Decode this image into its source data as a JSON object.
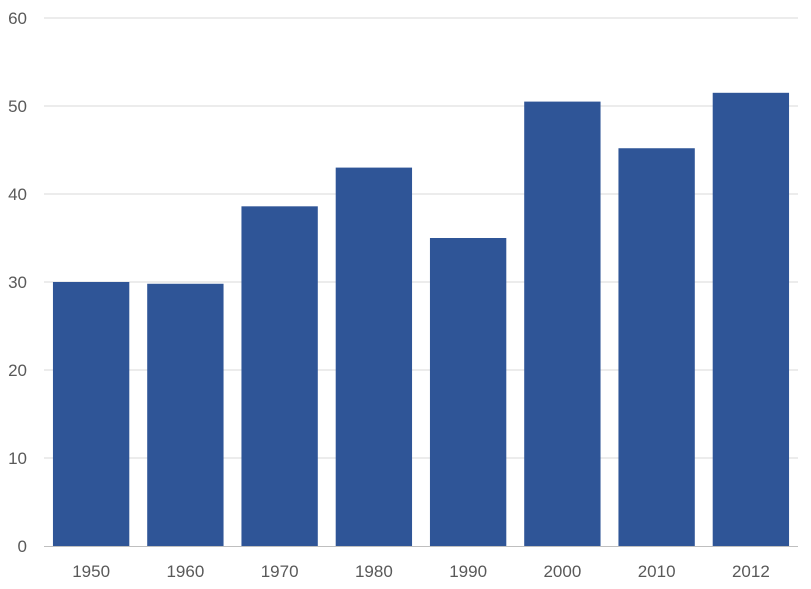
{
  "chart_data": {
    "type": "bar",
    "title": "",
    "xlabel": "",
    "ylabel": "",
    "categories": [
      "1950",
      "1960",
      "1970",
      "1980",
      "1990",
      "2000",
      "2010",
      "2012"
    ],
    "values": [
      30.0,
      29.8,
      38.6,
      43.0,
      35.0,
      50.5,
      45.2,
      51.5
    ],
    "ylim": [
      0,
      60
    ],
    "yticks": [
      0,
      10,
      20,
      30,
      40,
      50,
      60
    ],
    "grid": true,
    "legend": "none",
    "colors": {
      "bar": "#2F5597",
      "grid": "#D9D9D9",
      "axis": "#BFBFBF",
      "tick_text": "#595959"
    }
  }
}
